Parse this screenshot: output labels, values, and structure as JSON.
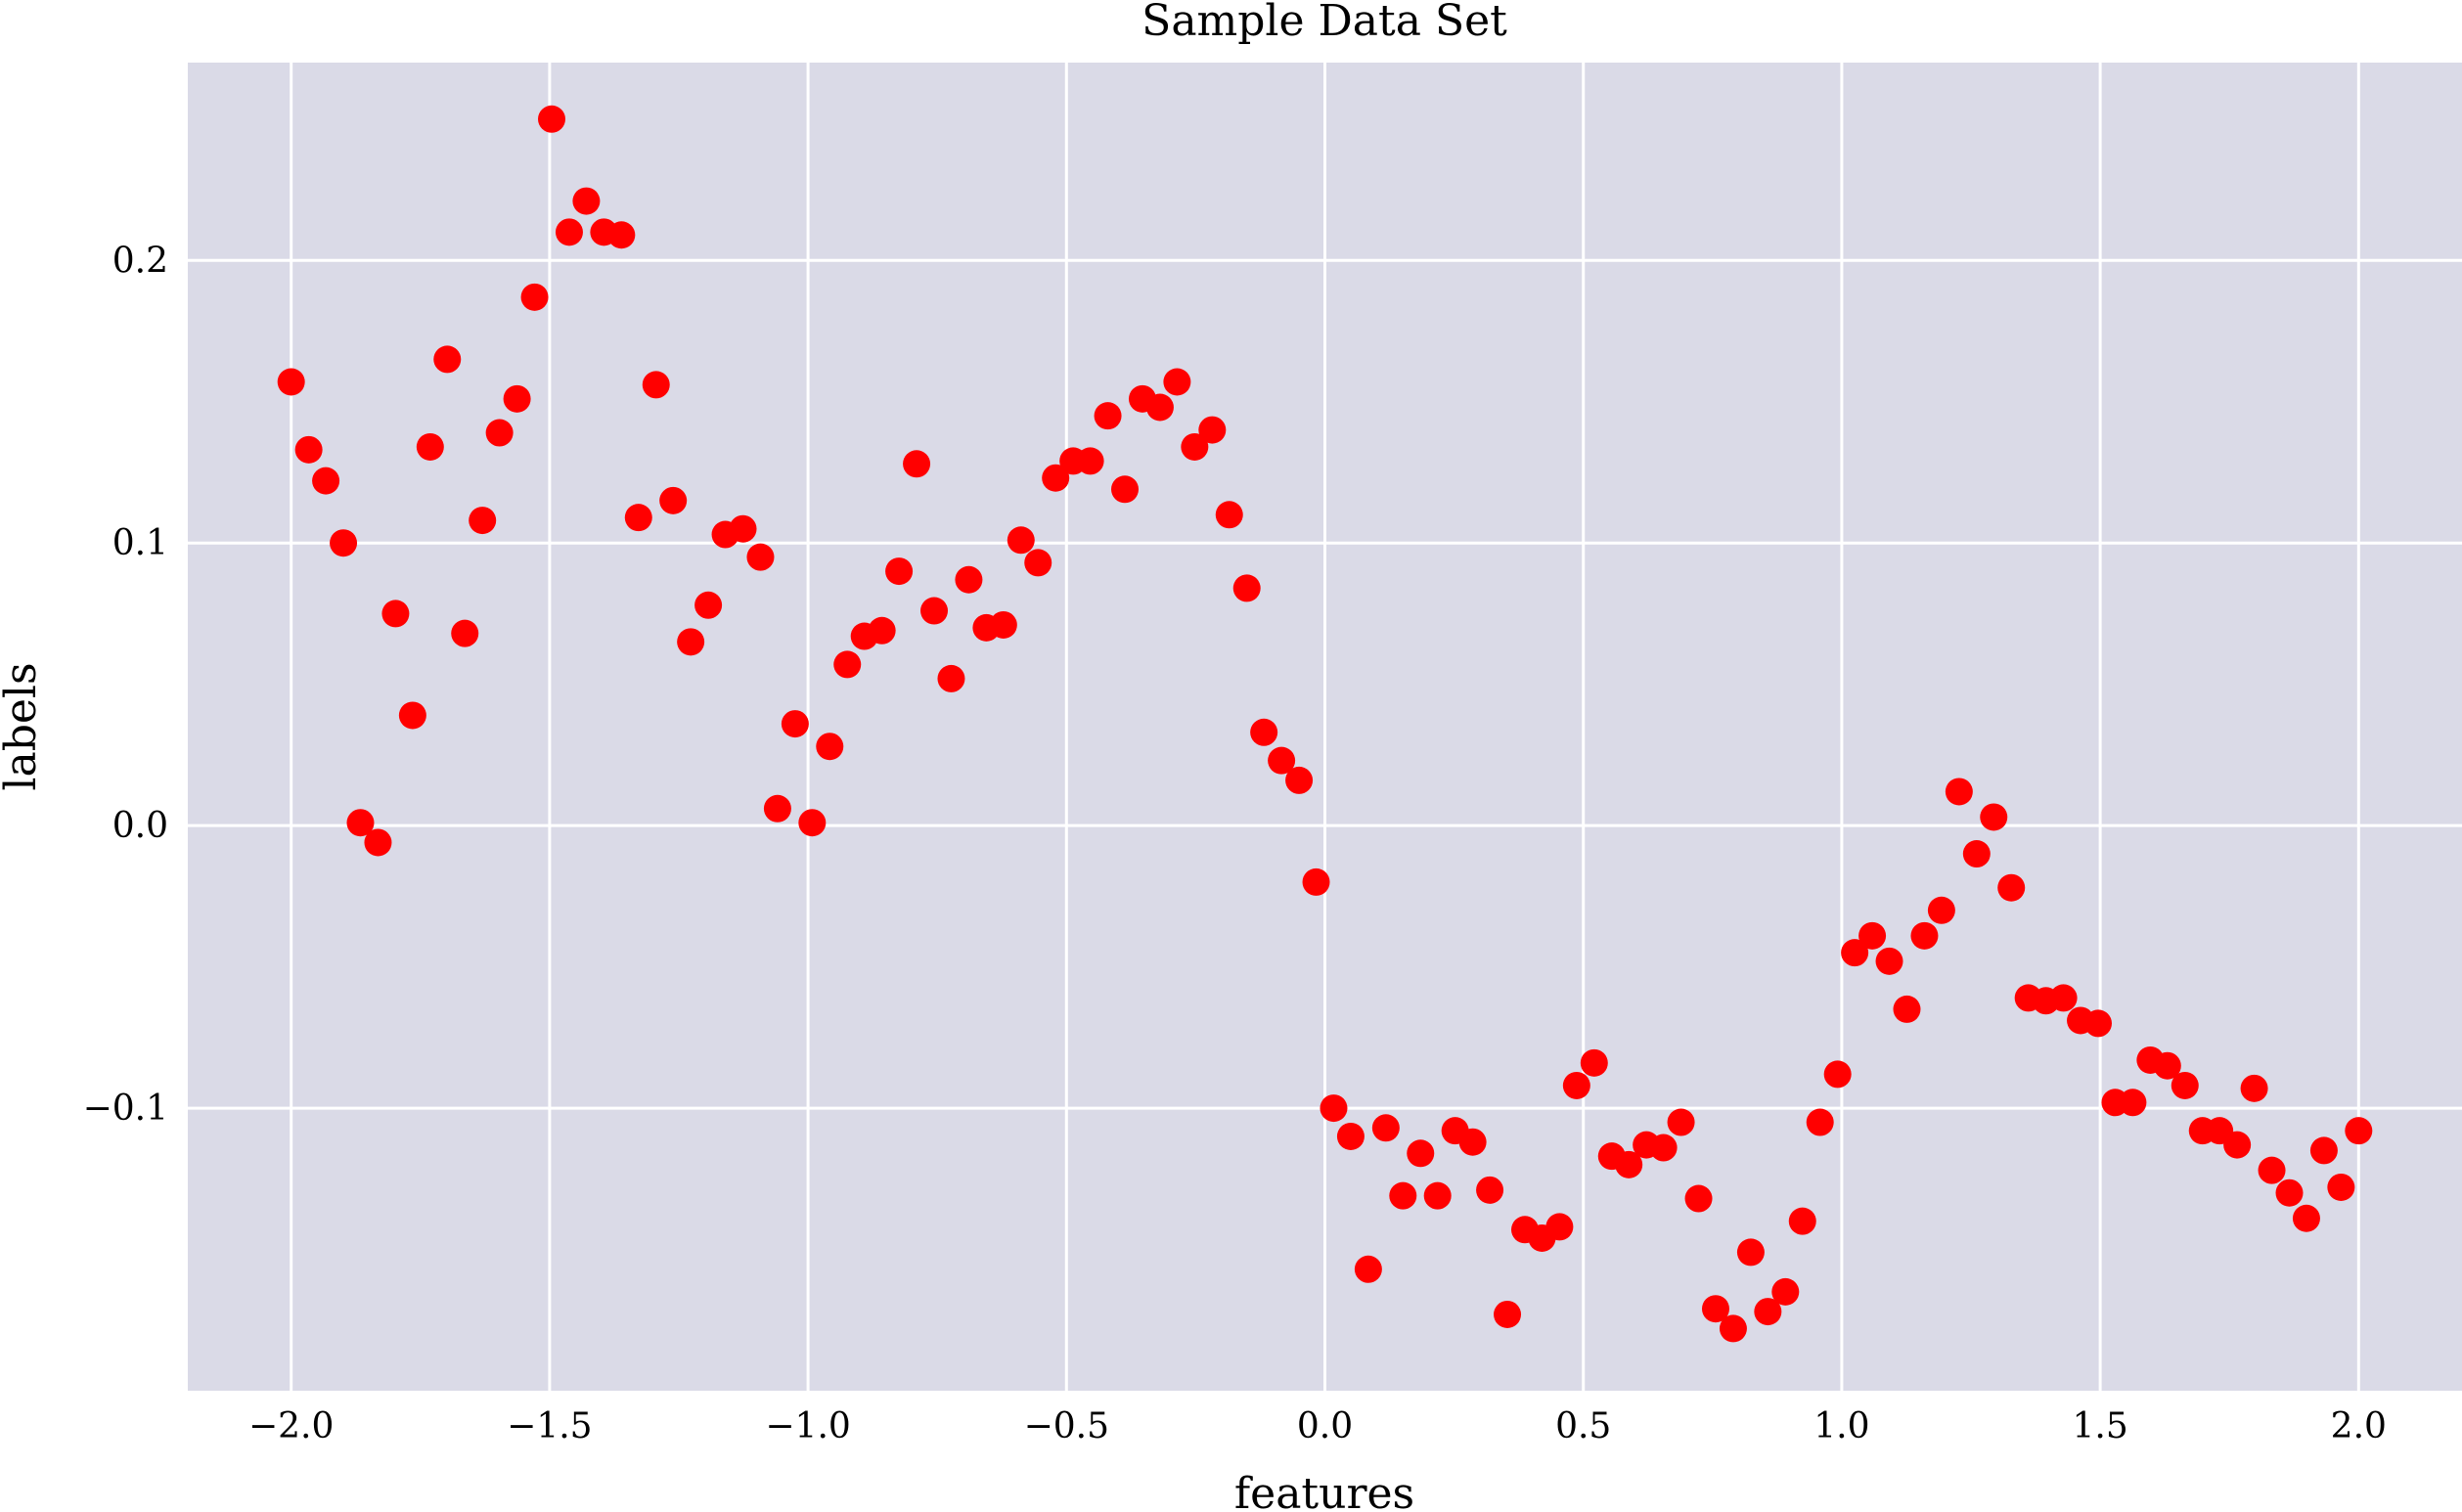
{
  "chart_data": {
    "type": "scatter",
    "title": "Sample Data Set",
    "xlabel": "features",
    "ylabel": "labels",
    "xlim": [
      -2.2,
      2.2
    ],
    "ylim": [
      -0.2,
      0.27
    ],
    "xticks": [
      -2.0,
      -1.5,
      -1.0,
      -0.5,
      0.0,
      0.5,
      1.0,
      1.5,
      2.0
    ],
    "xtick_labels": [
      "−2.0",
      "−1.5",
      "−1.0",
      "−0.5",
      "0.0",
      "0.5",
      "1.0",
      "1.5",
      "2.0"
    ],
    "yticks": [
      -0.1,
      0.0,
      0.1,
      0.2
    ],
    "ytick_labels": [
      "−0.1",
      "0.0",
      "0.1",
      "0.2"
    ],
    "grid": true,
    "background_color": "#dadae7",
    "grid_color": "#ffffff",
    "marker_color": "#ff0000",
    "series": [
      {
        "x": [
          -2.0,
          -1.966,
          -1.933,
          -1.899,
          -1.866,
          -1.832,
          -1.798,
          -1.765,
          -1.731,
          -1.698,
          -1.664,
          -1.63,
          -1.597,
          -1.563,
          -1.529,
          -1.496,
          -1.462,
          -1.429,
          -1.395,
          -1.361,
          -1.328,
          -1.294,
          -1.261,
          -1.227,
          -1.193,
          -1.16,
          -1.126,
          -1.092,
          -1.059,
          -1.025,
          -0.992,
          -0.958,
          -0.924,
          -0.891,
          -0.857,
          -0.824,
          -0.79,
          -0.756,
          -0.723,
          -0.689,
          -0.655,
          -0.622,
          -0.588,
          -0.555,
          -0.521,
          -0.487,
          -0.454,
          -0.42,
          -0.387,
          -0.353,
          -0.319,
          -0.286,
          -0.252,
          -0.218,
          -0.185,
          -0.151,
          -0.118,
          -0.084,
          -0.05,
          -0.017,
          0.017,
          0.05,
          0.084,
          0.118,
          0.151,
          0.185,
          0.218,
          0.252,
          0.286,
          0.319,
          0.353,
          0.387,
          0.42,
          0.454,
          0.487,
          0.521,
          0.555,
          0.588,
          0.622,
          0.655,
          0.689,
          0.723,
          0.756,
          0.79,
          0.824,
          0.857,
          0.891,
          0.924,
          0.958,
          0.992,
          1.025,
          1.059,
          1.092,
          1.126,
          1.16,
          1.193,
          1.227,
          1.261,
          1.294,
          1.328,
          1.361,
          1.395,
          1.429,
          1.462,
          1.496,
          1.529,
          1.563,
          1.597,
          1.63,
          1.664,
          1.698,
          1.731,
          1.765,
          1.798,
          1.832,
          1.866,
          1.899,
          1.933,
          1.966,
          2.0
        ],
        "y": [
          0.157,
          0.133,
          0.122,
          0.1,
          0.001,
          -0.006,
          0.075,
          0.039,
          0.134,
          0.165,
          0.068,
          0.108,
          0.139,
          0.151,
          0.187,
          0.25,
          0.21,
          0.221,
          0.21,
          0.209,
          0.109,
          0.156,
          0.115,
          0.065,
          0.078,
          0.103,
          0.105,
          0.095,
          0.006,
          0.036,
          0.001,
          0.028,
          0.057,
          0.067,
          0.069,
          0.09,
          0.128,
          0.076,
          0.052,
          0.087,
          0.07,
          0.071,
          0.101,
          0.093,
          0.123,
          0.129,
          0.129,
          0.145,
          0.119,
          0.151,
          0.148,
          0.157,
          0.134,
          0.14,
          0.11,
          0.084,
          0.033,
          0.023,
          0.016,
          -0.02,
          -0.1,
          -0.11,
          -0.157,
          -0.107,
          -0.131,
          -0.116,
          -0.131,
          -0.108,
          -0.112,
          -0.129,
          -0.173,
          -0.143,
          -0.146,
          -0.142,
          -0.092,
          -0.084,
          -0.117,
          -0.12,
          -0.113,
          -0.114,
          -0.105,
          -0.132,
          -0.171,
          -0.178,
          -0.151,
          -0.172,
          -0.165,
          -0.14,
          -0.105,
          -0.088,
          -0.045,
          -0.039,
          -0.048,
          -0.065,
          -0.039,
          -0.03,
          0.012,
          -0.01,
          0.003,
          -0.022,
          -0.061,
          -0.062,
          -0.061,
          -0.069,
          -0.07,
          -0.098,
          -0.098,
          -0.083,
          -0.085,
          -0.092,
          -0.108,
          -0.108,
          -0.113,
          -0.093,
          -0.122,
          -0.13,
          -0.139,
          -0.115,
          -0.128,
          -0.108
        ]
      }
    ]
  }
}
